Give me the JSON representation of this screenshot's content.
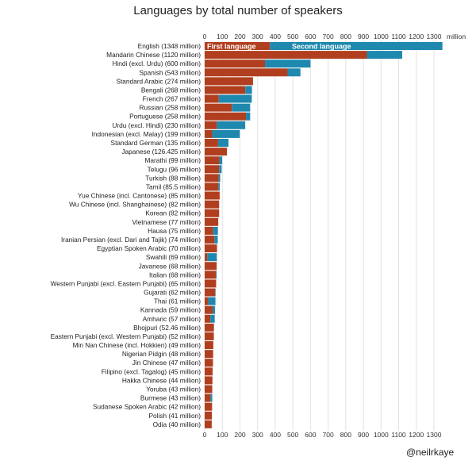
{
  "chart_data": {
    "type": "bar",
    "orientation": "horizontal",
    "stacked": true,
    "title": "Languages by total number of speakers",
    "xlabel": "million",
    "xlim": [
      0,
      1350
    ],
    "xticks": [
      0,
      100,
      200,
      300,
      400,
      500,
      600,
      700,
      800,
      900,
      1000,
      1100,
      1200,
      1300
    ],
    "grid": true,
    "legend_placement": "inside first bar",
    "colors": {
      "First language": "#b13f1f",
      "Second language": "#1f88ae"
    },
    "categories": [
      "English (1348 million)",
      "Mandarin Chinese (1120 million)",
      "Hindi (excl. Urdu) (600 million)",
      "Spanish (543 million)",
      "Standard Arabic (274 million)",
      "Bengali (268 million)",
      "French (267 million)",
      "Russian (258 million)",
      "Portuguese (258 million)",
      "Urdu (excl. Hindi) (230 million)",
      "Indonesian (excl. Malay) (199 million)",
      "Standard German (135 million)",
      "Japanese (126.425 million)",
      "Marathi (99 million)",
      "Telugu (96 million)",
      "Turkish (88 million)",
      "Tamil (85.5 million)",
      "Yue Chinese (incl. Cantonese) (85 million)",
      "Wu Chinese (incl. Shanghainese) (82 million)",
      "Korean (82 million)",
      "Vietnamese (77 million)",
      "Hausa (75 million)",
      "Iranian Persian (excl. Dari and Tajik) (74 million)",
      "Egyptian Spoken Arabic (70 million)",
      "Swahili (69 million)",
      "Javanese (68 million)",
      "Italian (68 million)",
      "Western Punjabi (excl. Eastern Punjabi) (65 million)",
      "Gujarati (62 million)",
      "Thai (61 million)",
      "Kannada (59 million)",
      "Amharic (57 million)",
      "Bhojpuri (52.46 million)",
      "Eastern Punjabi (excl. Western Punjabi) (52 million)",
      "Min Nan Chinese (incl. Hokkien) (49 million)",
      "Nigerian Pidgin (48 million)",
      "Jin Chinese (47 million)",
      "Filipino (excl. Tagalog) (45 million)",
      "Hakka Chinese (44 million)",
      "Yoruba (43 million)",
      "Burmese (43 million)",
      "Sudanese Spoken Arabic (42 million)",
      "Polish (41 million)",
      "Odia (40 million)"
    ],
    "totals": [
      1348,
      1120,
      600,
      543,
      274,
      268,
      267,
      258,
      258,
      230,
      199,
      135,
      126.425,
      99,
      96,
      88,
      85.5,
      85,
      82,
      82,
      77,
      75,
      74,
      70,
      69,
      68,
      68,
      65,
      62,
      61,
      59,
      57,
      52.46,
      52,
      49,
      48,
      47,
      45,
      44,
      43,
      43,
      42,
      41,
      40
    ],
    "series": [
      {
        "name": "First language",
        "values": [
          370,
          920,
          342,
          470,
          274,
          230,
          80,
          154,
          234,
          69,
          43,
          76,
          126.425,
          83,
          82,
          79,
          78,
          85,
          82,
          82,
          77,
          48,
          55,
          70,
          15,
          68,
          64,
          65,
          60,
          20,
          45,
          32,
          52.46,
          52,
          49,
          48,
          47,
          45,
          44,
          43,
          33,
          42,
          41,
          40
        ]
      },
      {
        "name": "Second language",
        "values": [
          978,
          200,
          258,
          73,
          0,
          38,
          187,
          104,
          24,
          161,
          156,
          59,
          0,
          16,
          14,
          9,
          7.5,
          0,
          0,
          0,
          0,
          27,
          19,
          0,
          54,
          0,
          4,
          0,
          2,
          41,
          14,
          25,
          0,
          0,
          0,
          0,
          0,
          0,
          0,
          0,
          10,
          0,
          0,
          0
        ]
      }
    ]
  },
  "credit": "@neilrkaye"
}
